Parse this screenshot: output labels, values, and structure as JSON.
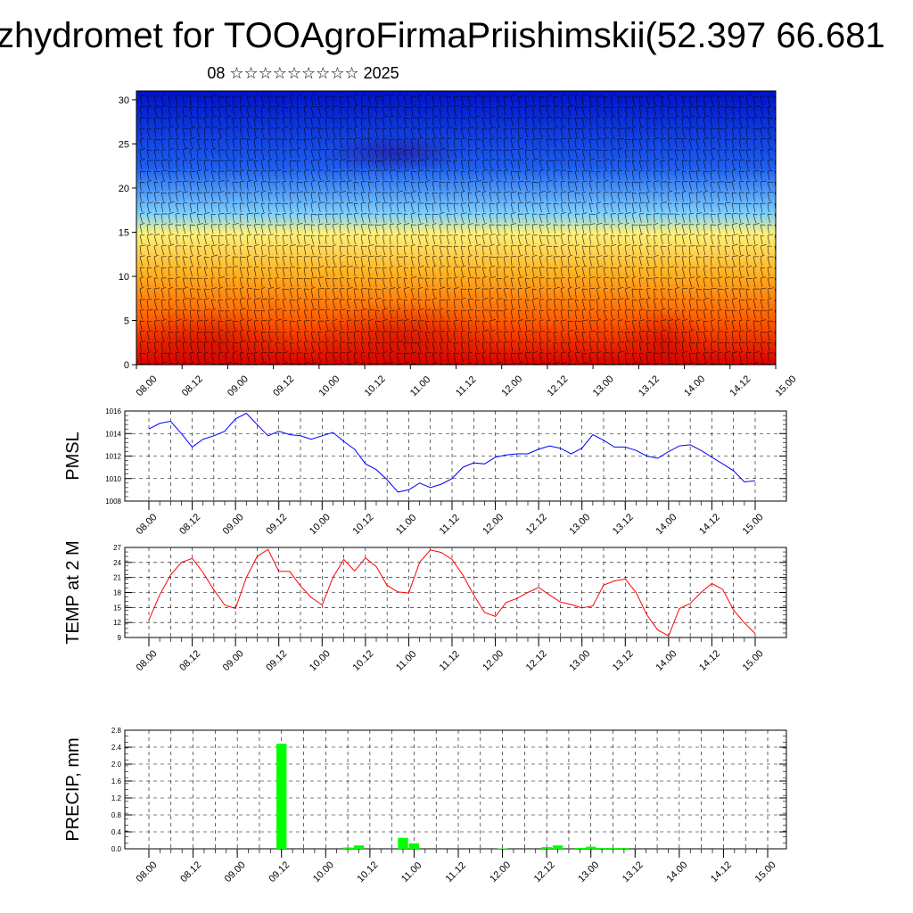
{
  "header": {
    "title": "zhydromet for TOOAgroFirmaPriishimskii(52.397 66.681",
    "subtitle": "08 ☆☆☆☆☆☆☆☆☆ 2025"
  },
  "chart_data": [
    {
      "type": "heatmap",
      "ylim": [
        0,
        31
      ],
      "yticks": [
        0,
        5,
        10,
        15,
        20,
        25,
        30
      ],
      "x_tick_labels": [
        "08.00",
        "08.12",
        "09.00",
        "09.12",
        "10.00",
        "10.12",
        "11.00",
        "11.12",
        "12.00",
        "12.12",
        "13.00",
        "13.12",
        "14.00",
        "14.12",
        "15.00"
      ],
      "colors": [
        "#0012c8",
        "#1e5ff0",
        "#7fd2ff",
        "#fff27a",
        "#ffb020",
        "#ff5a00",
        "#d80000"
      ]
    },
    {
      "type": "line",
      "ylabel": "PMSL",
      "ylim": [
        1008,
        1016
      ],
      "yticks": [
        1008,
        1010,
        1012,
        1014,
        1016
      ],
      "x_tick_labels": [
        "08.00",
        "08.12",
        "09.00",
        "09.12",
        "10.00",
        "10.12",
        "11.00",
        "11.12",
        "12.00",
        "12.12",
        "13.00",
        "13.12",
        "14.00",
        "14.12",
        "15.00"
      ],
      "color": "#0000ff",
      "values": [
        1014.4,
        1014.9,
        1015.1,
        1014.0,
        1012.8,
        1013.5,
        1013.8,
        1014.2,
        1015.3,
        1015.8,
        1014.8,
        1013.8,
        1014.2,
        1013.9,
        1013.8,
        1013.5,
        1013.8,
        1014.1,
        1013.3,
        1012.6,
        1011.3,
        1010.8,
        1009.9,
        1008.8,
        1009.0,
        1009.6,
        1009.2,
        1009.5,
        1010.0,
        1011.0,
        1011.4,
        1011.3,
        1011.9,
        1012.1,
        1012.2,
        1012.2,
        1012.6,
        1012.9,
        1012.7,
        1012.2,
        1012.7,
        1013.9,
        1013.4,
        1012.8,
        1012.8,
        1012.5,
        1012.0,
        1011.8,
        1012.4,
        1012.9,
        1013.0,
        1012.5,
        1011.9,
        1011.3,
        1010.7,
        1009.7,
        1009.8
      ]
    },
    {
      "type": "line",
      "ylabel": "TEMP at 2 M",
      "ylim": [
        9,
        27
      ],
      "yticks": [
        9,
        12,
        15,
        18,
        21,
        24,
        27
      ],
      "x_tick_labels": [
        "08.00",
        "08.12",
        "09.00",
        "09.12",
        "10.00",
        "10.12",
        "11.00",
        "11.12",
        "12.00",
        "12.12",
        "13.00",
        "13.12",
        "14.00",
        "14.12",
        "15.00"
      ],
      "color": "#ff0000",
      "values": [
        12.5,
        17.5,
        21.5,
        24.0,
        24.8,
        22.0,
        18.5,
        15.5,
        14.8,
        21.0,
        25.2,
        26.6,
        22.2,
        22.2,
        19.3,
        17.0,
        15.5,
        21.0,
        24.6,
        22.3,
        24.9,
        23.2,
        19.4,
        18.1,
        17.9,
        24.0,
        26.5,
        26.0,
        24.6,
        21.5,
        17.5,
        14.0,
        13.2,
        16.0,
        16.8,
        18.0,
        19.0,
        17.5,
        16.1,
        15.6,
        14.9,
        15.3,
        19.5,
        20.3,
        20.7,
        18.0,
        13.5,
        10.5,
        9.3,
        14.8,
        15.8,
        18.0,
        19.8,
        18.6,
        14.5,
        11.9,
        9.8
      ]
    },
    {
      "type": "bar",
      "ylabel": "PRECIP, mm",
      "ylim": [
        0,
        2.8
      ],
      "yticks": [
        "0.0",
        "0.4",
        "0.8",
        "1.2",
        "1.6",
        "2.0",
        "2.4",
        "2.8"
      ],
      "x_tick_labels": [
        "08.00",
        "08.12",
        "09.00",
        "09.12",
        "10.00",
        "10.12",
        "11.00",
        "11.12",
        "12.00",
        "12.12",
        "13.00",
        "13.12",
        "14.00",
        "14.12",
        "15.00"
      ],
      "color": "#00ff00",
      "values": [
        0,
        0,
        0,
        0,
        0,
        0,
        0,
        0,
        0,
        0,
        0,
        0,
        2.48,
        0,
        0,
        0,
        0,
        0,
        0.03,
        0.08,
        0,
        0,
        0,
        0.26,
        0.13,
        0,
        0,
        0,
        0,
        0,
        0,
        0,
        0.01,
        0,
        0,
        0,
        0.04,
        0.08,
        0,
        0.02,
        0.05,
        0.02,
        0.02,
        0.02,
        0,
        0,
        0,
        0,
        0,
        0,
        0,
        0,
        0,
        0,
        0,
        0,
        0
      ]
    }
  ]
}
